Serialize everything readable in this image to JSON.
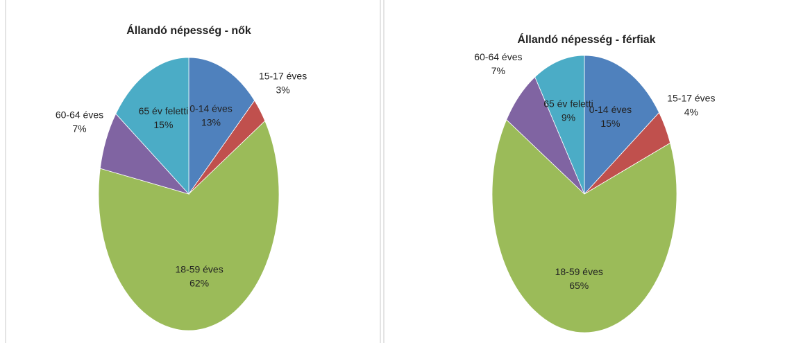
{
  "chart_data": [
    {
      "type": "pie",
      "title": "Állandó népesség - nők",
      "categories": [
        "0-14 éves",
        "15-17 éves",
        "18-59 éves",
        "60-64 éves",
        "65 év feletti"
      ],
      "values": [
        13,
        3,
        62,
        7,
        15
      ],
      "value_labels": [
        "13%",
        "3%",
        "62%",
        "7%",
        "15%"
      ],
      "colors": [
        "#4f81bd",
        "#c0504d",
        "#9bbb59",
        "#8064a2",
        "#4bacc6"
      ]
    },
    {
      "type": "pie",
      "title": "Állandó népesség - férfiak",
      "categories": [
        "0-14 éves",
        "15-17 éves",
        "18-59 éves",
        "60-64 éves",
        "65 év feletti"
      ],
      "values": [
        15,
        4,
        65,
        7,
        9
      ],
      "value_labels": [
        "15%",
        "4%",
        "65%",
        "7%",
        "9%"
      ],
      "colors": [
        "#4f81bd",
        "#c0504d",
        "#9bbb59",
        "#8064a2",
        "#4bacc6"
      ]
    }
  ]
}
